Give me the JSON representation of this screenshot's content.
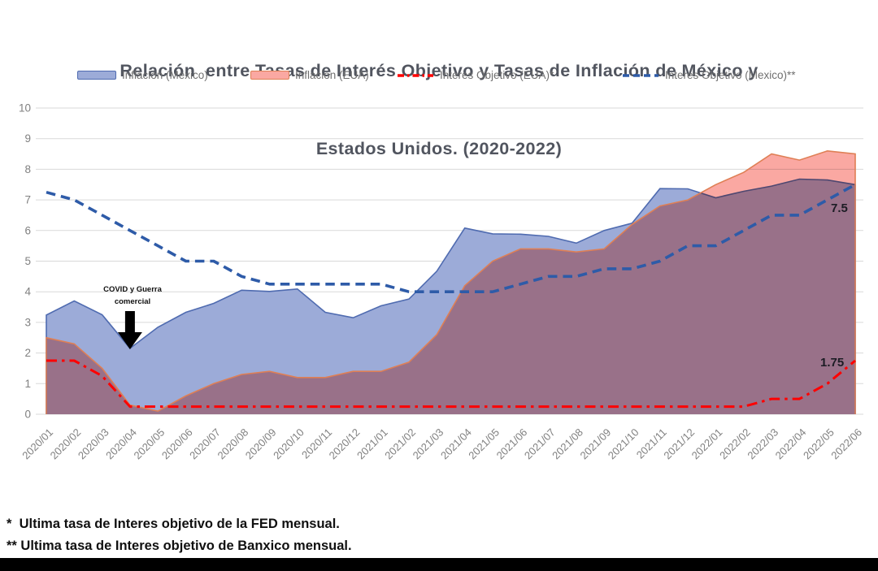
{
  "title": {
    "line1": "Relación  entre Tasas de Interés Objetivo y Tasas de Inflación de México y",
    "line2": "Estados Unidos. (2020-2022)"
  },
  "legend": [
    {
      "label": "Inflacion (Mexico)"
    },
    {
      "label": "Inflacion (EUA)"
    },
    {
      "label": "Interes Objetivo (EUA)*"
    },
    {
      "label": "Interes Objetivo (Mexico)**"
    }
  ],
  "chart_data": {
    "type": "area",
    "title": "Relación entre Tasas de Interés Objetivo y Tasas de Inflación de México y Estados Unidos. (2020-2022)",
    "xlabel": "",
    "ylabel": "",
    "ylim": [
      0,
      10
    ],
    "yticks": [
      0,
      1,
      2,
      3,
      4,
      5,
      6,
      7,
      8,
      9,
      10
    ],
    "grid": true,
    "legend_position": "top",
    "categories": [
      "2020/01",
      "2020/02",
      "2020/03",
      "2020/04",
      "2020/05",
      "2020/06",
      "2020/07",
      "2020/08",
      "2020/09",
      "2020/10",
      "2020/11",
      "2020/12",
      "2021/01",
      "2021/02",
      "2021/03",
      "2021/04",
      "2021/05",
      "2021/06",
      "2021/07",
      "2021/08",
      "2021/09",
      "2021/10",
      "2021/11",
      "2021/12",
      "2022/01",
      "2022/02",
      "2022/03",
      "2022/04",
      "2022/05",
      "2022/06"
    ],
    "series": [
      {
        "name": "Inflacion (Mexico)",
        "type": "area",
        "color": "#9CABD8",
        "edge_color": "#4F6BB0",
        "values": [
          3.24,
          3.7,
          3.25,
          2.15,
          2.84,
          3.33,
          3.62,
          4.05,
          4.01,
          4.09,
          3.33,
          3.15,
          3.54,
          3.76,
          4.67,
          6.08,
          5.89,
          5.88,
          5.81,
          5.59,
          6.0,
          6.24,
          7.37,
          7.36,
          7.07,
          7.28,
          7.45,
          7.68,
          7.65,
          7.5
        ]
      },
      {
        "name": "Inflacion (EUA)",
        "type": "area",
        "color": "#FAA8A2",
        "edge_color": "#DF7F55",
        "values": [
          2.5,
          2.3,
          1.5,
          0.3,
          0.1,
          0.6,
          1.0,
          1.3,
          1.4,
          1.2,
          1.2,
          1.4,
          1.4,
          1.7,
          2.6,
          4.2,
          5.0,
          5.4,
          5.4,
          5.3,
          5.4,
          6.2,
          6.8,
          7.0,
          7.5,
          7.9,
          8.5,
          8.3,
          8.6,
          8.5
        ]
      },
      {
        "name": "Interes Objetivo (EUA)*",
        "type": "dashdot-line",
        "color": "#FF0000",
        "width": 3,
        "dash": "13 6 3.5 6",
        "legend_dash": "8 4 2.5 4",
        "values": [
          1.75,
          1.75,
          1.25,
          0.25,
          0.25,
          0.25,
          0.25,
          0.25,
          0.25,
          0.25,
          0.25,
          0.25,
          0.25,
          0.25,
          0.25,
          0.25,
          0.25,
          0.25,
          0.25,
          0.25,
          0.25,
          0.25,
          0.25,
          0.25,
          0.25,
          0.25,
          0.5,
          0.5,
          1.0,
          1.75
        ]
      },
      {
        "name": "Interes Objetivo (Mexico)**",
        "type": "dashed-line",
        "color": "#2E5BA8",
        "width": 3.6,
        "dash": "11.5 7",
        "legend_dash": "8 5",
        "values": [
          7.25,
          7.0,
          6.5,
          6.0,
          5.5,
          5.0,
          5.0,
          4.5,
          4.25,
          4.25,
          4.25,
          4.25,
          4.25,
          4.0,
          4.0,
          4.0,
          4.0,
          4.25,
          4.5,
          4.5,
          4.75,
          4.75,
          5.0,
          5.5,
          5.5,
          6.0,
          6.5,
          6.5,
          7.0,
          7.5
        ]
      }
    ],
    "annotation": {
      "text_line1": "COVID y Guerra",
      "text_line2": "comercial",
      "x_category": "2020/04"
    },
    "end_labels": {
      "mexico_rate": "7.5",
      "eua_rate": "1.75"
    },
    "style": {
      "grid_color": "#D9D9D9",
      "axis_text_color": "#808080"
    }
  },
  "footnotes": {
    "line1": "*  Ultima tasa de Interes objetivo de la FED mensual.",
    "line2": "** Ultima tasa de Interes objetivo de Banxico mensual."
  }
}
